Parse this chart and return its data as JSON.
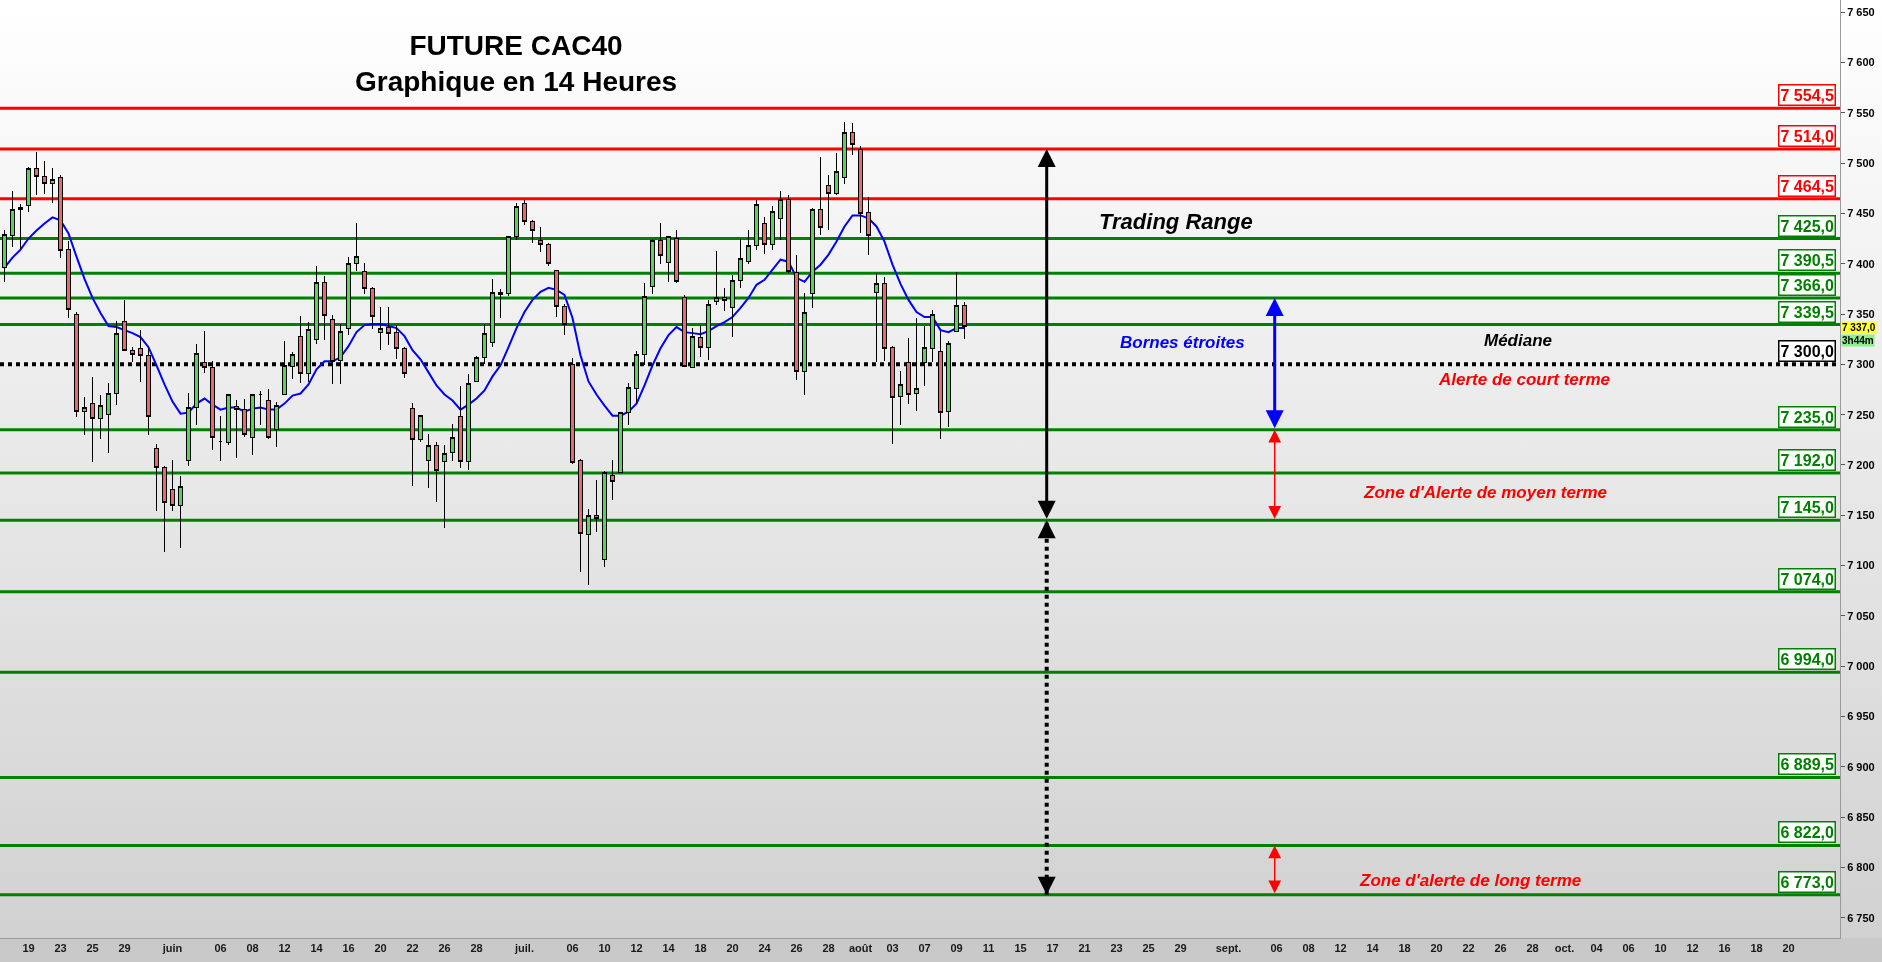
{
  "chart_data": {
    "type": "candlestick",
    "title": "FUTURE CAC40",
    "subtitle": "Graphique en 14 Heures",
    "categories": [
      null,
      null,
      null,
      "19",
      null,
      null,
      null,
      "23",
      null,
      null,
      null,
      "25",
      null,
      null,
      null,
      "29",
      null,
      null,
      null,
      null,
      null,
      "juin",
      null,
      null,
      null,
      null,
      null,
      "06",
      null,
      null,
      null,
      "08",
      null,
      null,
      null,
      "12",
      null,
      null,
      null,
      "14",
      null,
      null,
      null,
      "16",
      null,
      null,
      null,
      "20",
      null,
      null,
      null,
      "22",
      null,
      null,
      null,
      "26",
      null,
      null,
      null,
      "28",
      null,
      null,
      null,
      null,
      null,
      "juil.",
      null,
      null,
      null,
      null,
      null,
      "06",
      null,
      null,
      null,
      "10",
      null,
      null,
      null,
      "12",
      null,
      null,
      null,
      "14",
      null,
      null,
      null,
      "18",
      null,
      null,
      null,
      "20",
      null,
      null,
      null,
      "24",
      null,
      null,
      null,
      "26",
      null,
      null,
      null,
      "28",
      null,
      null,
      null,
      "août",
      null,
      null,
      null,
      "03",
      null,
      null,
      null,
      "07",
      null,
      null,
      null,
      "09",
      null,
      null,
      null,
      "11",
      null,
      null,
      null,
      "15",
      null,
      null,
      null,
      "17",
      null,
      null,
      null,
      "21",
      null,
      null,
      null,
      "23",
      null,
      null,
      null,
      "25",
      null,
      null,
      null,
      "29",
      null,
      null,
      null,
      null,
      null,
      "sept.",
      null,
      null,
      null,
      null,
      null,
      "06",
      null,
      null,
      null,
      "08",
      null,
      null,
      null,
      "12",
      null,
      null,
      null,
      "14",
      null,
      null,
      null,
      "18",
      null,
      null,
      null,
      "20",
      null,
      null,
      null,
      "22",
      null,
      null,
      null,
      "26",
      null,
      null,
      null,
      "28",
      null,
      null,
      null,
      "oct.",
      null,
      null,
      null,
      "04",
      null,
      null,
      null,
      "06",
      null,
      null,
      null,
      "10",
      null,
      null,
      null,
      "12",
      null,
      null,
      null,
      "16",
      null,
      null,
      null,
      "18",
      null,
      null,
      null,
      "20",
      null,
      null
    ],
    "ohlc": [
      [
        7396,
        7433,
        7382,
        7429
      ],
      [
        7428,
        7472,
        7417,
        7454
      ],
      [
        7454,
        7459,
        7415,
        7456
      ],
      [
        7458,
        7496,
        7451,
        7495
      ],
      [
        7495,
        7511,
        7468,
        7487
      ],
      [
        7487,
        7502,
        7469,
        7480
      ],
      [
        7480,
        7495,
        7460,
        7484
      ],
      [
        7486,
        7488,
        7406,
        7413
      ],
      [
        7414,
        7423,
        7346,
        7354
      ],
      [
        7350,
        7352,
        7248,
        7253
      ],
      [
        7253,
        7268,
        7230,
        7257
      ],
      [
        7261,
        7287,
        7203,
        7246
      ],
      [
        7246,
        7270,
        7226,
        7259
      ],
      [
        7250,
        7281,
        7212,
        7271
      ],
      [
        7271,
        7343,
        7260,
        7331
      ],
      [
        7343,
        7364,
        7313,
        7314
      ],
      [
        7314,
        7317,
        7302,
        7310
      ],
      [
        7316,
        7334,
        7282,
        7309
      ],
      [
        7309,
        7316,
        7230,
        7248
      ],
      [
        7216,
        7221,
        7154,
        7197
      ],
      [
        7197,
        7199,
        7114,
        7163
      ],
      [
        7176,
        7205,
        7154,
        7160
      ],
      [
        7160,
        7189,
        7118,
        7179
      ],
      [
        7204,
        7272,
        7199,
        7257
      ],
      [
        7257,
        7320,
        7240,
        7311
      ],
      [
        7302,
        7333,
        7291,
        7297
      ],
      [
        7297,
        7303,
        7215,
        7227
      ],
      [
        7223,
        7249,
        7204,
        7223
      ],
      [
        7222,
        7270,
        7220,
        7270
      ],
      [
        7258,
        7265,
        7207,
        7255
      ],
      [
        7255,
        7266,
        7228,
        7230
      ],
      [
        7227,
        7271,
        7210,
        7270
      ],
      [
        7270,
        7274,
        7240,
        7270
      ],
      [
        7264,
        7275,
        7226,
        7227
      ],
      [
        7235,
        7263,
        7218,
        7259
      ],
      [
        7270,
        7323,
        7270,
        7299
      ],
      [
        7298,
        7312,
        7285,
        7310
      ],
      [
        7328,
        7348,
        7281,
        7291
      ],
      [
        7291,
        7342,
        7282,
        7335
      ],
      [
        7325,
        7398,
        7320,
        7381
      ],
      [
        7381,
        7388,
        7324,
        7349
      ],
      [
        7345,
        7349,
        7280,
        7303
      ],
      [
        7304,
        7340,
        7280,
        7333
      ],
      [
        7336,
        7407,
        7329,
        7400
      ],
      [
        7400,
        7440,
        7393,
        7407
      ],
      [
        7392,
        7401,
        7370,
        7375
      ],
      [
        7375,
        7377,
        7335,
        7348
      ],
      [
        7332,
        7357,
        7314,
        7336
      ],
      [
        7337,
        7357,
        7319,
        7331
      ],
      [
        7332,
        7339,
        7305,
        7316
      ],
      [
        7316,
        7317,
        7286,
        7291
      ],
      [
        7256,
        7262,
        7179,
        7225
      ],
      [
        7225,
        7250,
        7223,
        7249
      ],
      [
        7204,
        7231,
        7177,
        7219
      ],
      [
        7219,
        7223,
        7163,
        7195
      ],
      [
        7203,
        7220,
        7137,
        7211
      ],
      [
        7212,
        7241,
        7204,
        7227
      ],
      [
        7248,
        7278,
        7197,
        7203
      ],
      [
        7203,
        7290,
        7195,
        7281
      ],
      [
        7283,
        7308,
        7282,
        7307
      ],
      [
        7307,
        7340,
        7300,
        7331
      ],
      [
        7322,
        7385,
        7317,
        7371
      ],
      [
        7371,
        7375,
        7346,
        7369
      ],
      [
        7370,
        7427,
        7368,
        7427
      ],
      [
        7427,
        7460,
        7424,
        7457
      ],
      [
        7460,
        7463,
        7438,
        7442
      ],
      [
        7442,
        7443,
        7421,
        7433
      ],
      [
        7423,
        7436,
        7412,
        7419
      ],
      [
        7419,
        7421,
        7398,
        7400
      ],
      [
        7393,
        7393,
        7347,
        7357
      ],
      [
        7357,
        7360,
        7329,
        7340
      ],
      [
        7300,
        7306,
        7201,
        7202
      ],
      [
        7204,
        7206,
        7094,
        7132
      ],
      [
        7131,
        7156,
        7081,
        7150
      ],
      [
        7150,
        7185,
        7133,
        7147
      ],
      [
        7106,
        7194,
        7099,
        7193
      ],
      [
        7190,
        7205,
        7165,
        7184
      ],
      [
        7193,
        7252,
        7193,
        7252
      ],
      [
        7252,
        7281,
        7240,
        7277
      ],
      [
        7276,
        7313,
        7261,
        7310
      ],
      [
        7310,
        7381,
        7299,
        7367
      ],
      [
        7377,
        7425,
        7370,
        7423
      ],
      [
        7423,
        7440,
        7400,
        7408
      ],
      [
        7401,
        7428,
        7382,
        7427
      ],
      [
        7425,
        7433,
        7381,
        7382
      ],
      [
        7366,
        7369,
        7297,
        7298
      ],
      [
        7297,
        7336,
        7296,
        7328
      ],
      [
        7327,
        7339,
        7307,
        7317
      ],
      [
        7317,
        7364,
        7304,
        7359
      ],
      [
        7362,
        7413,
        7359,
        7366
      ],
      [
        7366,
        7376,
        7353,
        7363
      ],
      [
        7356,
        7389,
        7327,
        7383
      ],
      [
        7383,
        7425,
        7376,
        7405
      ],
      [
        7402,
        7433,
        7400,
        7418
      ],
      [
        7418,
        7463,
        7414,
        7459
      ],
      [
        7440,
        7446,
        7410,
        7419
      ],
      [
        7419,
        7457,
        7414,
        7452
      ],
      [
        7445,
        7472,
        7424,
        7464
      ],
      [
        7464,
        7468,
        7391,
        7392
      ],
      [
        7391,
        7409,
        7284,
        7293
      ],
      [
        7293,
        7371,
        7270,
        7352
      ],
      [
        7370,
        7455,
        7356,
        7454
      ],
      [
        7454,
        7506,
        7429,
        7436
      ],
      [
        7478,
        7488,
        7433,
        7470
      ],
      [
        7470,
        7510,
        7468,
        7492
      ],
      [
        7486,
        7541,
        7479,
        7530
      ],
      [
        7530,
        7540,
        7508,
        7518
      ],
      [
        7513,
        7517,
        7430,
        7450
      ],
      [
        7451,
        7466,
        7409,
        7428
      ],
      [
        7371,
        7391,
        7302,
        7380
      ],
      [
        7380,
        7387,
        7303,
        7316
      ],
      [
        7317,
        7318,
        7221,
        7267
      ],
      [
        7268,
        7293,
        7240,
        7280
      ],
      [
        7302,
        7326,
        7261,
        7270
      ],
      [
        7271,
        7346,
        7254,
        7276
      ],
      [
        7302,
        7338,
        7278,
        7317
      ],
      [
        7316,
        7354,
        7302,
        7350
      ],
      [
        7313,
        7333,
        7226,
        7252
      ],
      [
        7253,
        7323,
        7238,
        7321
      ],
      [
        7333,
        7392,
        7332,
        7358
      ],
      [
        7358,
        7362,
        7325,
        7338
      ],
      null,
      null,
      null,
      null,
      null,
      null,
      null,
      null,
      null,
      null,
      null,
      null,
      null,
      null,
      null,
      null,
      null,
      null,
      null,
      null,
      null,
      null,
      null,
      null,
      null,
      null,
      null,
      null,
      null,
      null,
      null,
      null,
      null,
      null,
      null,
      null,
      null,
      null,
      null,
      null,
      null,
      null,
      null,
      null,
      null,
      null,
      null,
      null,
      null,
      null,
      null,
      null,
      null,
      null,
      null,
      null,
      null,
      null,
      null,
      null,
      null,
      null,
      null,
      null,
      null,
      null,
      null,
      null,
      null,
      null,
      null,
      null,
      null,
      null,
      null,
      null,
      null,
      null,
      null,
      null,
      null,
      null,
      null,
      null,
      null,
      null,
      null,
      null,
      null,
      null,
      null,
      null,
      null,
      null,
      null,
      null,
      null,
      null,
      null,
      null,
      null,
      null,
      null,
      null,
      null
    ],
    "series": [
      {
        "type": "line",
        "color": "#0000ff",
        "values": [
          7396,
          7406,
          7414,
          7425,
          7433,
          7440,
          7446,
          7443,
          7430,
          7407,
          7385,
          7366,
          7351,
          7338,
          7337,
          7334,
          7331,
          7327,
          7317,
          7299,
          7280,
          7263,
          7251,
          7252,
          7261,
          7266,
          7260,
          7255,
          7257,
          7257,
          7253,
          7256,
          7257,
          7255,
          7255,
          7261,
          7269,
          7271,
          7280,
          7295,
          7303,
          7303,
          7307,
          7318,
          7332,
          7339,
          7340,
          7340,
          7338,
          7336,
          7328,
          7314,
          7305,
          7292,
          7279,
          7270,
          7264,
          7255,
          7260,
          7266,
          7274,
          7288,
          7299,
          7317,
          7336,
          7352,
          7364,
          7372,
          7376,
          7374,
          7369,
          7346,
          7309,
          7283,
          7270,
          7259,
          7249,
          7249,
          7253,
          7261,
          7279,
          7299,
          7316,
          7329,
          7337,
          7332,
          7331,
          7330,
          7333,
          7338,
          7342,
          7347,
          7356,
          7366,
          7379,
          7384,
          7394,
          7404,
          7402,
          7386,
          7382,
          7392,
          7399,
          7409,
          7422,
          7437,
          7448,
          7448,
          7445,
          7437,
          7422,
          7399,
          7380,
          7364,
          7352,
          7347,
          7347,
          7334,
          7332,
          7336,
          7336,
          null,
          null,
          null,
          null,
          null,
          null,
          null,
          null,
          null,
          null,
          null,
          null,
          null,
          null,
          null,
          null,
          null,
          null,
          null,
          null,
          null,
          null,
          null,
          null,
          null,
          null,
          null,
          null,
          null,
          null,
          null,
          null,
          null,
          null,
          null,
          null,
          null,
          null,
          null,
          null,
          null,
          null,
          null,
          null,
          null,
          null,
          null,
          null,
          null,
          null,
          null,
          null,
          null,
          null,
          null,
          null,
          null,
          null,
          null,
          null,
          null,
          null,
          null,
          null,
          null,
          null,
          null,
          null,
          null,
          null,
          null,
          null,
          null,
          null,
          null,
          null,
          null,
          null,
          null,
          null,
          null,
          null,
          null,
          null,
          null,
          null,
          null,
          null,
          null,
          null,
          null,
          null,
          null,
          null,
          null,
          null,
          null,
          null,
          null,
          null,
          null,
          null,
          null,
          null,
          null
        ]
      }
    ],
    "ylim": [
      6730,
      7662
    ],
    "yticks": [
      {
        "value": 6750,
        "label": "6 750"
      },
      {
        "value": 6800,
        "label": "6 800"
      },
      {
        "value": 6850,
        "label": "6 850"
      },
      {
        "value": 6900,
        "label": "6 900"
      },
      {
        "value": 6950,
        "label": "6 950"
      },
      {
        "value": 7000,
        "label": "7 000"
      },
      {
        "value": 7050,
        "label": "7 050"
      },
      {
        "value": 7100,
        "label": "7 100"
      },
      {
        "value": 7150,
        "label": "7 150"
      },
      {
        "value": 7200,
        "label": "7 200"
      },
      {
        "value": 7250,
        "label": "7 250"
      },
      {
        "value": 7300,
        "label": "7 300"
      },
      {
        "value": 7350,
        "label": "7 350"
      },
      {
        "value": 7400,
        "label": "7 400"
      },
      {
        "value": 7450,
        "label": "7 450"
      },
      {
        "value": 7500,
        "label": "7 500"
      },
      {
        "value": 7550,
        "label": "7 550"
      },
      {
        "value": 7600,
        "label": "7 600"
      },
      {
        "value": 7650,
        "label": "7 650"
      }
    ],
    "ref_lines": [
      {
        "axis": "y",
        "value": 7554.5,
        "label": "7 554,5",
        "color": "#ff0000"
      },
      {
        "axis": "y",
        "value": 7514,
        "label": "7 514,0",
        "color": "#ff0000"
      },
      {
        "axis": "y",
        "value": 7464.5,
        "label": "7 464,5",
        "color": "#ff0000"
      },
      {
        "axis": "y",
        "value": 7425,
        "label": "7 425,0",
        "color": "#008000"
      },
      {
        "axis": "y",
        "value": 7390.5,
        "label": "7 390,5",
        "color": "#008000"
      },
      {
        "axis": "y",
        "value": 7366,
        "label": "7 366,0",
        "color": "#008000"
      },
      {
        "axis": "y",
        "value": 7339.5,
        "label": "7 339,5",
        "color": "#008000"
      },
      {
        "axis": "y",
        "value": 7300,
        "label": "7 300,0",
        "color": "#000000",
        "line_style": "dotted"
      },
      {
        "axis": "y",
        "value": 7235,
        "label": "7 235,0",
        "color": "#008000"
      },
      {
        "axis": "y",
        "value": 7192,
        "label": "7 192,0",
        "color": "#008000"
      },
      {
        "axis": "y",
        "value": 7145,
        "label": "7 145,0",
        "color": "#008000"
      },
      {
        "axis": "y",
        "value": 7074,
        "label": "7 074,0",
        "color": "#008000"
      },
      {
        "axis": "y",
        "value": 6994,
        "label": "6 994,0",
        "color": "#008000"
      },
      {
        "axis": "y",
        "value": 6889.5,
        "label": "6 889,5",
        "color": "#008000"
      },
      {
        "axis": "y",
        "value": 6822,
        "label": "6 822,0",
        "color": "#008000"
      },
      {
        "axis": "y",
        "value": 6773,
        "label": "6 773,0",
        "color": "#008000"
      }
    ],
    "annotations": [
      "Trading Range",
      "Bornes étroites",
      "Médiane",
      "Alerte de court terme",
      "Zone d'Alerte de moyen terme",
      "Zone d'alerte de long terme",
      "7 337,0",
      "3h44m"
    ],
    "grid": false
  }
}
